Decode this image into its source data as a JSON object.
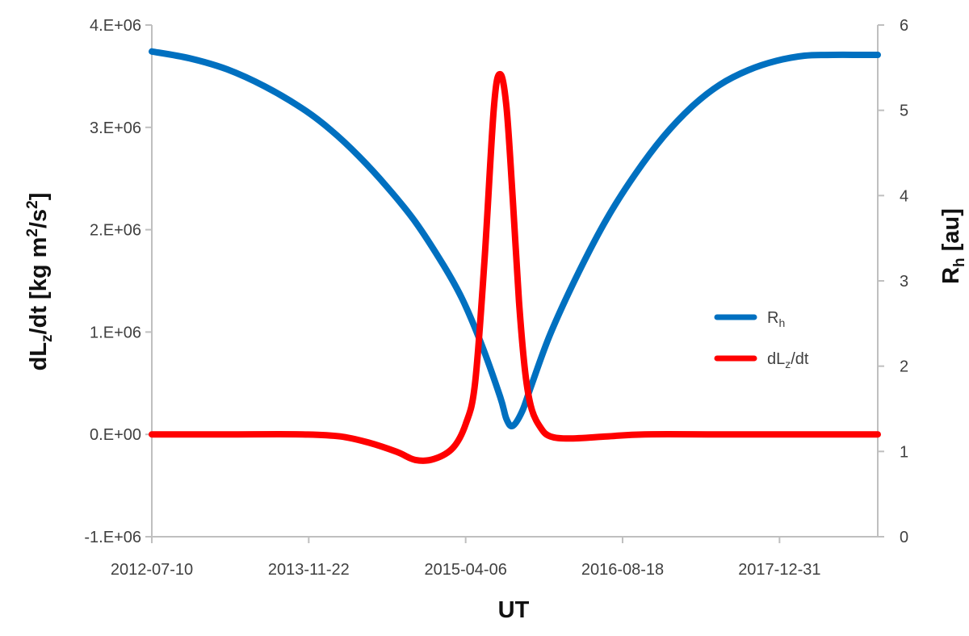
{
  "chart_data": {
    "type": "line",
    "xlabel": "UT",
    "ylabel_left": {
      "main": "dL",
      "sub": "z",
      "rest": "/dt [kg m",
      "sup": "2",
      "rest2": "/s",
      "sup2": "2",
      "end": "]"
    },
    "ylabel_right": {
      "main": "R",
      "sub": "h",
      "rest": " [au]"
    },
    "x_ticks": [
      "2012-07-10",
      "2013-11-22",
      "2015-04-06",
      "2016-08-18",
      "2017-12-31"
    ],
    "xlim": [
      "2012-07-10",
      "2018-11-09"
    ],
    "left_ylim": [
      -1000000,
      4000000
    ],
    "left_ticks": [
      {
        "value": -1000000,
        "label": "-1.E+06"
      },
      {
        "value": 0,
        "label": "0.E+00"
      },
      {
        "value": 1000000,
        "label": "1.E+06"
      },
      {
        "value": 2000000,
        "label": "2.E+06"
      },
      {
        "value": 3000000,
        "label": "3.E+06"
      },
      {
        "value": 4000000,
        "label": "4.E+06"
      }
    ],
    "right_ylim": [
      0,
      6
    ],
    "right_ticks": [
      {
        "value": 0,
        "label": "0"
      },
      {
        "value": 1,
        "label": "1"
      },
      {
        "value": 2,
        "label": "2"
      },
      {
        "value": 3,
        "label": "3"
      },
      {
        "value": 4,
        "label": "4"
      },
      {
        "value": 5,
        "label": "5"
      },
      {
        "value": 6,
        "label": "6"
      }
    ],
    "grid": false,
    "legend_position": "center-right",
    "series": [
      {
        "name": "R",
        "name_sub": "h",
        "axis": "right",
        "color": "#0070C0",
        "x": [
          "2012-07-10",
          "2012-11-07",
          "2013-03-07",
          "2013-07-05",
          "2013-11-02",
          "2014-01-31",
          "2014-05-01",
          "2014-07-30",
          "2014-10-28",
          "2015-01-26",
          "2015-03-27",
          "2015-05-26",
          "2015-07-25",
          "2015-08-14",
          "2015-09-03",
          "2015-10-03",
          "2015-11-02",
          "2016-01-01",
          "2016-03-31",
          "2016-06-29",
          "2016-09-27",
          "2016-12-26",
          "2017-03-26",
          "2017-06-24",
          "2017-09-22",
          "2017-12-21",
          "2018-03-21",
          "2018-06-19",
          "2018-09-17",
          "2018-11-09"
        ],
        "y": [
          5.69,
          5.61,
          5.48,
          5.28,
          5.02,
          4.77,
          4.46,
          4.1,
          3.69,
          3.18,
          2.78,
          2.26,
          1.64,
          1.38,
          1.3,
          1.47,
          1.78,
          2.38,
          3.1,
          3.73,
          4.25,
          4.69,
          5.04,
          5.3,
          5.47,
          5.58,
          5.64,
          5.65,
          5.65,
          5.65
        ]
      },
      {
        "name": "dL",
        "name_sub": "z",
        "name_suffix": "/dt",
        "axis": "left",
        "color": "#FF0000",
        "x": [
          "2012-07-10",
          "2013-03-07",
          "2013-11-02",
          "2014-03-02",
          "2014-05-31",
          "2014-08-29",
          "2014-10-28",
          "2014-12-27",
          "2015-02-25",
          "2015-04-06",
          "2015-05-06",
          "2015-06-05",
          "2015-07-05",
          "2015-07-25",
          "2015-08-14",
          "2015-09-03",
          "2015-09-23",
          "2015-10-13",
          "2015-11-02",
          "2015-12-02",
          "2016-01-01",
          "2016-03-01",
          "2016-06-29",
          "2016-10-27",
          "2017-06-24",
          "2018-03-21",
          "2018-11-09"
        ],
        "y": [
          0,
          0,
          0,
          -20000,
          -80000,
          -170000,
          -250000,
          -240000,
          -130000,
          100000,
          500000,
          1700000,
          3200000,
          3520000,
          3200000,
          2300000,
          1300000,
          600000,
          250000,
          60000,
          -20000,
          -40000,
          -20000,
          0,
          0,
          0,
          0
        ]
      }
    ]
  }
}
